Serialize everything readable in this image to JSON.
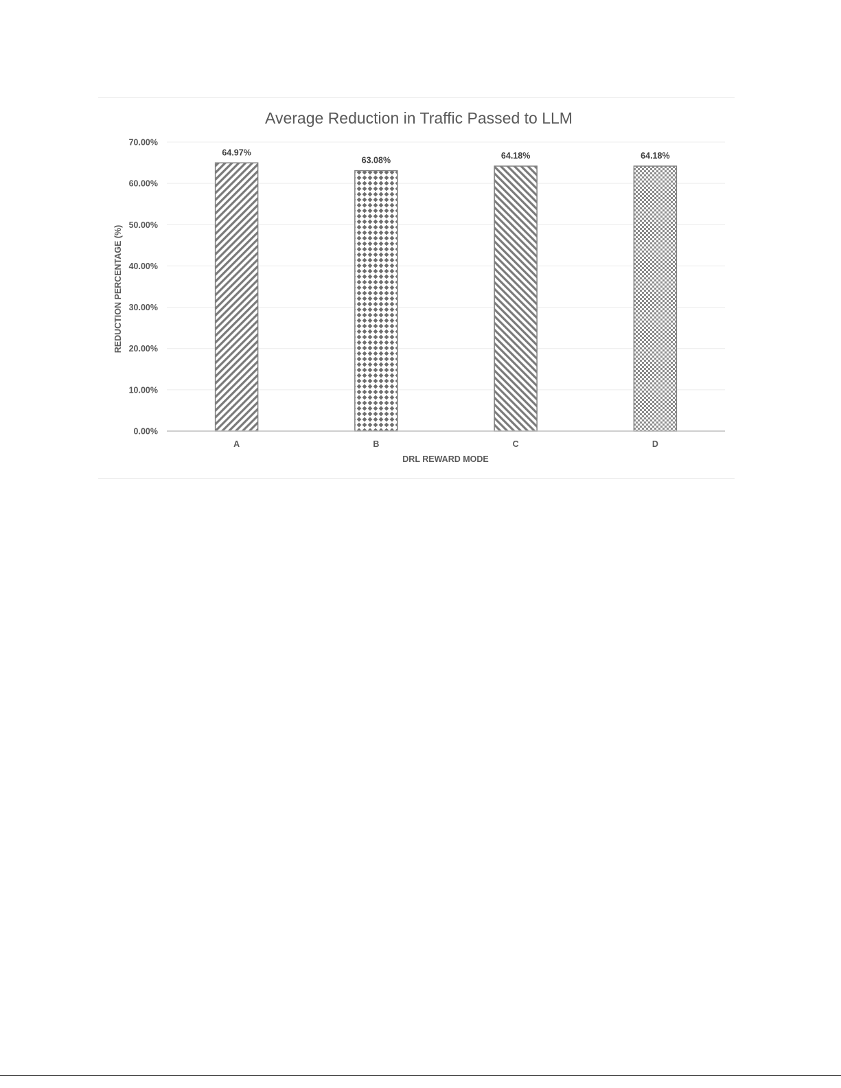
{
  "chart_data": {
    "type": "bar",
    "title": "Average Reduction in Traffic Passed to LLM",
    "xlabel": "DRL REWARD MODE",
    "ylabel": "REDUCTION PERCENTAGE (%)",
    "categories": [
      "A",
      "B",
      "C",
      "D"
    ],
    "values": [
      64.97,
      63.08,
      64.18,
      64.18
    ],
    "data_labels": [
      "64.97%",
      "63.08%",
      "64.18%",
      "64.18%"
    ],
    "patterns": [
      "diagonal-up",
      "diamond-grid",
      "diagonal-down",
      "checkerboard"
    ],
    "ylim": [
      0,
      70
    ],
    "yticks": [
      0,
      10,
      20,
      30,
      40,
      50,
      60,
      70
    ],
    "ytick_labels": [
      "0.00%",
      "10.00%",
      "20.00%",
      "30.00%",
      "40.00%",
      "50.00%",
      "60.00%",
      "70.00%"
    ],
    "grid": true,
    "legend": "none",
    "colors": {
      "bar": "#808080",
      "grid": "#ececec",
      "axis": "#bfbfbf",
      "text": "#595959"
    }
  }
}
